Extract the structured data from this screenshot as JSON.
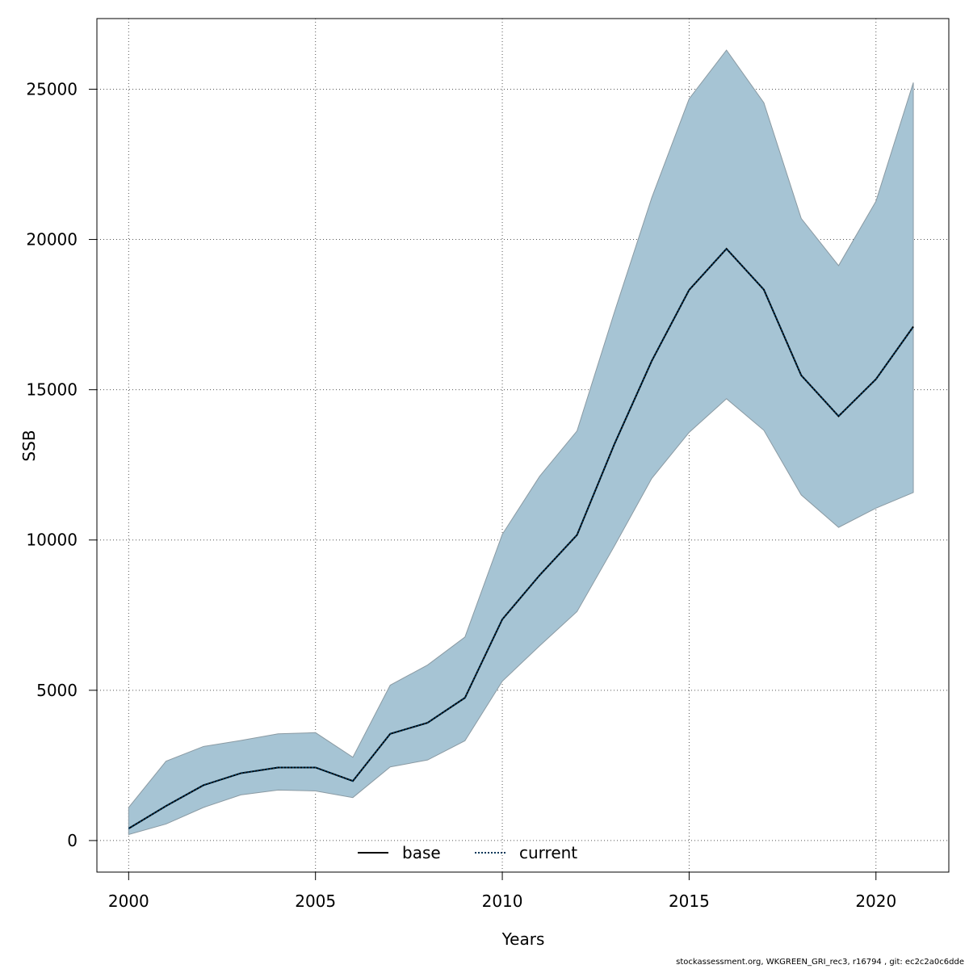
{
  "chart_data": {
    "type": "line",
    "xlabel": "Years",
    "ylabel": "SSB",
    "xlim": [
      1999.15,
      2021.95
    ],
    "ylim": [
      -1050,
      27350
    ],
    "x_ticks": [
      2000,
      2005,
      2010,
      2015,
      2020
    ],
    "y_ticks": [
      0,
      5000,
      10000,
      15000,
      20000,
      25000
    ],
    "grid": true,
    "grid_style": "dotted",
    "legend_position": "bottom-center",
    "x": [
      2000,
      2001,
      2002,
      2003,
      2004,
      2005,
      2006,
      2007,
      2008,
      2009,
      2010,
      2011,
      2012,
      2013,
      2014,
      2015,
      2016,
      2017,
      2018,
      2019,
      2020,
      2021
    ],
    "band": {
      "lower": [
        200,
        550,
        1100,
        1520,
        1680,
        1650,
        1430,
        2450,
        2680,
        3320,
        5300,
        6480,
        7620,
        9800,
        12050,
        13580,
        14700,
        13650,
        11500,
        10420,
        11060,
        11580
      ],
      "upper": [
        1100,
        2640,
        3130,
        3330,
        3550,
        3590,
        2770,
        5170,
        5840,
        6770,
        10190,
        12120,
        13630,
        17580,
        21390,
        24680,
        26300,
        24550,
        20700,
        19130,
        21270,
        25220
      ],
      "color": "#a6c4d4",
      "edge_color": "#8a9aa3"
    },
    "series": [
      {
        "name": "base",
        "style": "solid",
        "color": "#000000",
        "values": [
          400,
          1150,
          1840,
          2240,
          2430,
          2430,
          1980,
          3550,
          3920,
          4750,
          7360,
          8830,
          10170,
          13190,
          15960,
          18320,
          19690,
          18330,
          15480,
          14120,
          15350,
          17100
        ]
      },
      {
        "name": "current",
        "style": "dotted",
        "color": "#00375a",
        "values": [
          400,
          1150,
          1840,
          2240,
          2430,
          2430,
          1980,
          3550,
          3920,
          4750,
          7360,
          8830,
          10170,
          13190,
          15960,
          18320,
          19690,
          18330,
          15480,
          14120,
          15350,
          17100
        ]
      }
    ]
  },
  "footer_text": "stockassessment.org, WKGREEN_GRI_rec3, r16794 , git: ec2c2a0c6dde"
}
